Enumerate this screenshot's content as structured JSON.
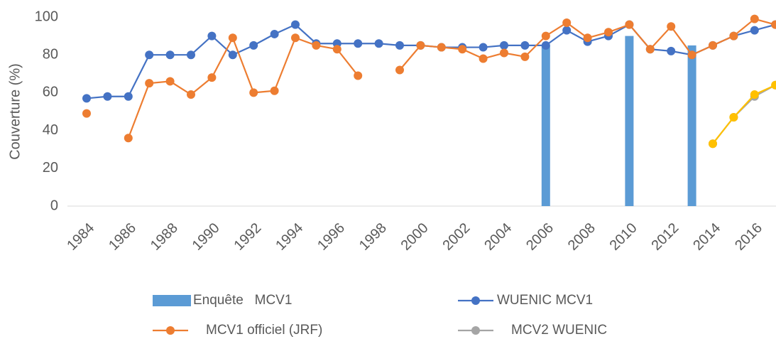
{
  "chart_data": {
    "type": "line",
    "ylabel": "Couverture (%)",
    "categories": [
      "1984",
      null,
      "1986",
      null,
      "1988",
      null,
      "1990",
      null,
      "1992",
      null,
      "1994",
      null,
      "1996",
      null,
      "1998",
      null,
      "2000",
      null,
      "2002",
      null,
      "2004",
      null,
      "2006",
      null,
      "2008",
      null,
      "2010",
      null,
      "2012",
      null,
      "2014",
      null,
      "2016",
      null
    ],
    "ylim": [
      0,
      100
    ],
    "yticks": [
      0,
      20,
      40,
      60,
      80,
      100
    ],
    "grid": false,
    "series": [
      {
        "name": "Enquête   MCV1",
        "type": "bar",
        "color": "#5b9bd5",
        "values": [
          null,
          null,
          null,
          null,
          null,
          null,
          null,
          null,
          null,
          null,
          null,
          null,
          null,
          null,
          null,
          null,
          null,
          null,
          null,
          null,
          null,
          null,
          85,
          null,
          null,
          null,
          90,
          null,
          null,
          85,
          null,
          null,
          null,
          null
        ]
      },
      {
        "name": "WUENIC MCV1",
        "type": "line",
        "color": "#4472c4",
        "values": [
          57,
          58,
          58,
          80,
          80,
          80,
          90,
          80,
          85,
          91,
          96,
          86,
          86,
          86,
          86,
          85,
          85,
          84,
          84,
          84,
          85,
          85,
          85,
          93,
          87,
          90,
          96,
          83,
          82,
          80,
          85,
          90,
          93,
          96
        ]
      },
      {
        "name": "MCV1 officiel (JRF)",
        "type": "line",
        "color": "#ed7d31",
        "values": [
          49,
          null,
          36,
          65,
          66,
          59,
          68,
          89,
          60,
          61,
          89,
          85,
          83,
          69,
          null,
          72,
          85,
          84,
          83,
          78,
          81,
          79,
          90,
          97,
          89,
          92,
          96,
          83,
          95,
          80,
          85,
          90,
          99,
          96
        ]
      },
      {
        "name": "MCV2 WUENIC",
        "type": "line",
        "color": "#a5a5a5",
        "values": [
          null,
          null,
          null,
          null,
          null,
          null,
          null,
          null,
          null,
          null,
          null,
          null,
          null,
          null,
          null,
          null,
          null,
          null,
          null,
          null,
          null,
          null,
          null,
          null,
          null,
          null,
          null,
          null,
          null,
          null,
          33,
          47,
          58,
          64
        ]
      },
      {
        "type": "line",
        "color": "#ffc000",
        "values": [
          null,
          null,
          null,
          null,
          null,
          null,
          null,
          null,
          null,
          null,
          null,
          null,
          null,
          null,
          null,
          null,
          null,
          null,
          null,
          null,
          null,
          null,
          null,
          null,
          null,
          null,
          null,
          null,
          null,
          null,
          33,
          47,
          59,
          64
        ]
      }
    ]
  }
}
